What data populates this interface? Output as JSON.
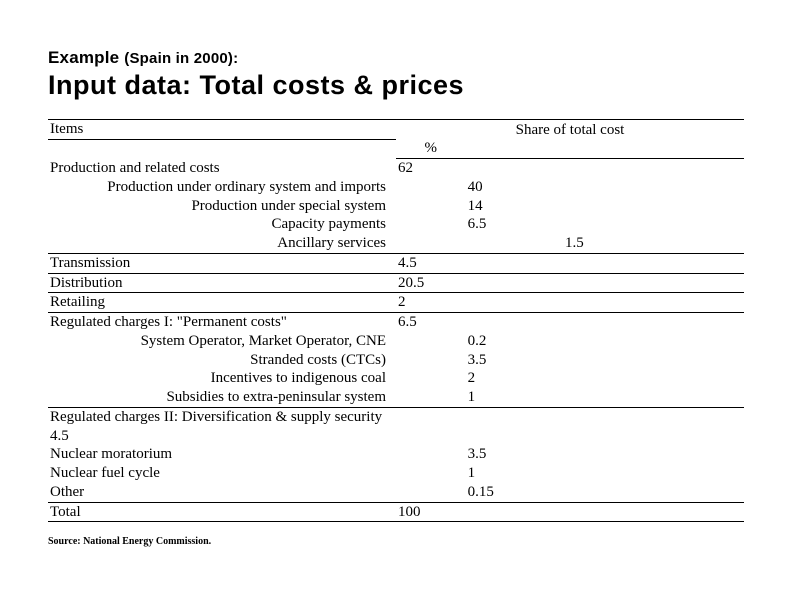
{
  "title": {
    "prefix": "Example",
    "paren": "(Spain in 2000):",
    "main": "Input data: Total costs & prices"
  },
  "header": {
    "items": "Items",
    "share": "Share of total cost",
    "pct": "%"
  },
  "rows": {
    "prod": {
      "label": "Production and related costs",
      "v": "62"
    },
    "prod_sub": {
      "ordinary": {
        "label": "Production under ordinary system and imports",
        "v": "40"
      },
      "special": {
        "label": "Production under special system",
        "v": "14"
      },
      "capacity": {
        "label": "Capacity payments",
        "v": "6.5"
      },
      "ancillary": {
        "label": "Ancillary services",
        "v": "1.5"
      }
    },
    "transmission": {
      "label": "Transmission",
      "v": "4.5"
    },
    "distribution": {
      "label": "Distribution",
      "v": "20.5"
    },
    "retailing": {
      "label": "Retailing",
      "v": "2"
    },
    "reg1": {
      "label": "Regulated charges I: \"Permanent costs\"",
      "v": "6.5"
    },
    "reg1_sub": {
      "cne": {
        "label": "System Operator, Market Operator, CNE",
        "v": "0.2"
      },
      "stranded": {
        "label": "Stranded costs (CTCs)",
        "v": "3.5"
      },
      "coal": {
        "label": "Incentives to indigenous coal",
        "v": "2"
      },
      "subsidies": {
        "label": "Subsidies to extra-peninsular system",
        "v": "1"
      }
    },
    "reg2": {
      "label": "Regulated charges II: Diversification & supply security",
      "v": "4.5"
    },
    "reg2_sub": {
      "moratorium": {
        "label": "Nuclear moratorium",
        "v": "3.5"
      },
      "fuel": {
        "label": "Nuclear fuel cycle",
        "v": "1"
      },
      "other": {
        "label": "Other",
        "v": "0.15"
      }
    },
    "total": {
      "label": "Total",
      "v": "100"
    }
  },
  "source": "Source: National Energy Commission."
}
